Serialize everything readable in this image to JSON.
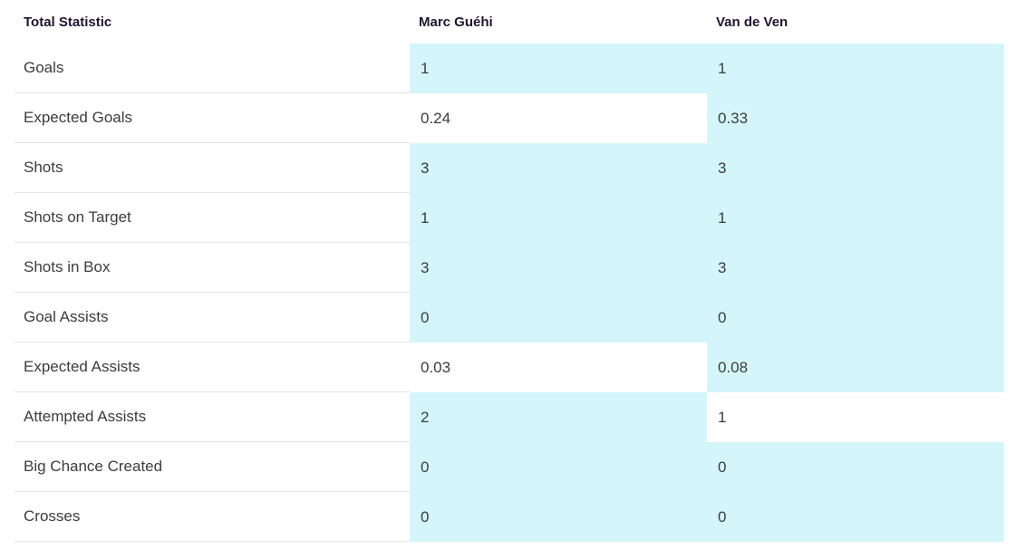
{
  "table": {
    "headers": {
      "stat": "Total Statistic",
      "player1": "Marc Guéhi",
      "player2": "Van de Ven"
    },
    "highlight_color": "#d4f6fa",
    "rows": [
      {
        "label": "Goals",
        "p1": "1",
        "p2": "1",
        "p1_highlight": true,
        "p2_highlight": true
      },
      {
        "label": "Expected Goals",
        "p1": "0.24",
        "p2": "0.33",
        "p1_highlight": false,
        "p2_highlight": true
      },
      {
        "label": "Shots",
        "p1": "3",
        "p2": "3",
        "p1_highlight": true,
        "p2_highlight": true
      },
      {
        "label": "Shots on Target",
        "p1": "1",
        "p2": "1",
        "p1_highlight": true,
        "p2_highlight": true
      },
      {
        "label": "Shots in Box",
        "p1": "3",
        "p2": "3",
        "p1_highlight": true,
        "p2_highlight": true
      },
      {
        "label": "Goal Assists",
        "p1": "0",
        "p2": "0",
        "p1_highlight": true,
        "p2_highlight": true
      },
      {
        "label": "Expected Assists",
        "p1": "0.03",
        "p2": "0.08",
        "p1_highlight": false,
        "p2_highlight": true
      },
      {
        "label": "Attempted Assists",
        "p1": "2",
        "p2": "1",
        "p1_highlight": true,
        "p2_highlight": false
      },
      {
        "label": "Big Chance Created",
        "p1": "0",
        "p2": "0",
        "p1_highlight": true,
        "p2_highlight": true
      },
      {
        "label": "Crosses",
        "p1": "0",
        "p2": "0",
        "p1_highlight": true,
        "p2_highlight": true
      }
    ]
  }
}
